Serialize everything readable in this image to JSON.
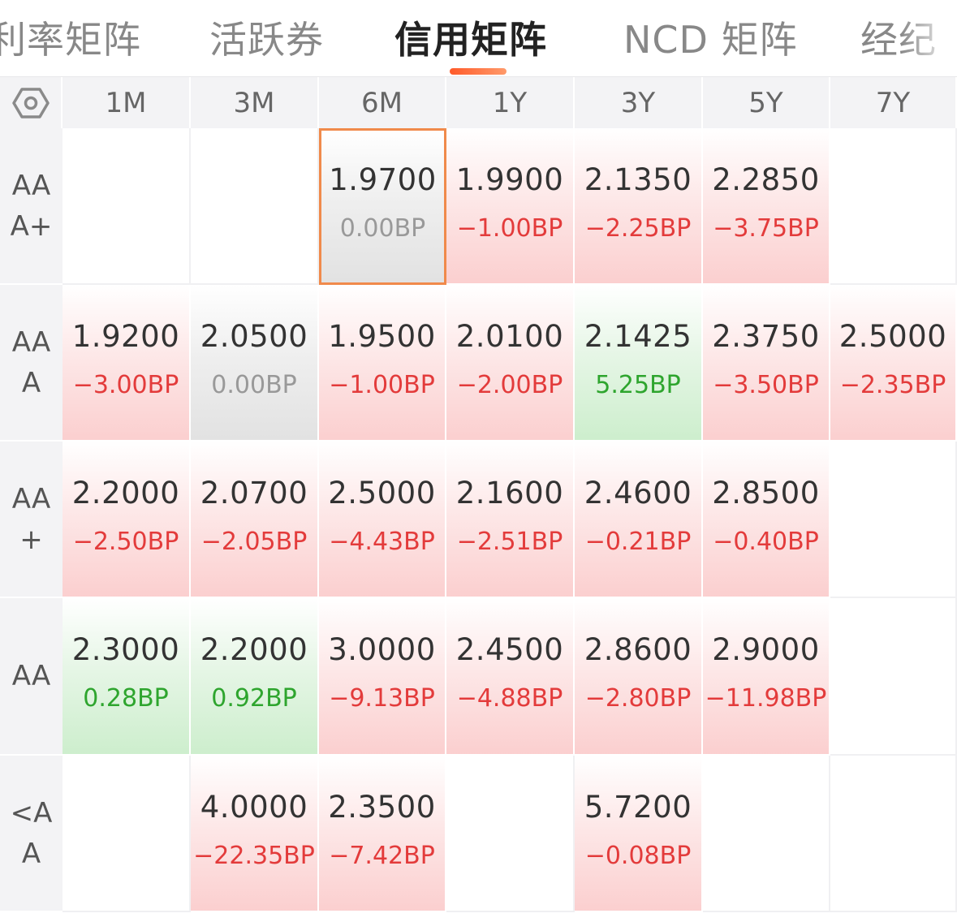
{
  "tabs": [
    {
      "label": "利率矩阵",
      "active": false
    },
    {
      "label": "活跃券",
      "active": false
    },
    {
      "label": "信用矩阵",
      "active": true
    },
    {
      "label": "NCD 矩阵",
      "active": false
    },
    {
      "label": "经纪",
      "active": false
    }
  ],
  "icons": {
    "settings": "hexagon-settings-icon"
  },
  "colors": {
    "accent": "#ff6a33",
    "negative": "#e33b3b",
    "positive": "#2ea52e",
    "neutral": "#999999",
    "selected_border": "#f08a4b"
  },
  "columns": [
    "1M",
    "3M",
    "6M",
    "1Y",
    "3Y",
    "5Y",
    "7Y"
  ],
  "rows": [
    {
      "label": "AA\nA+",
      "cells": [
        null,
        null,
        {
          "rate": "1.9700",
          "bp": "0.00BP",
          "trend": "zero",
          "selected": true
        },
        {
          "rate": "1.9900",
          "bp": "−1.00BP",
          "trend": "neg"
        },
        {
          "rate": "2.1350",
          "bp": "−2.25BP",
          "trend": "neg"
        },
        {
          "rate": "2.2850",
          "bp": "−3.75BP",
          "trend": "neg"
        },
        null
      ]
    },
    {
      "label": "AA\nA",
      "cells": [
        {
          "rate": "1.9200",
          "bp": "−3.00BP",
          "trend": "neg"
        },
        {
          "rate": "2.0500",
          "bp": "0.00BP",
          "trend": "zero"
        },
        {
          "rate": "1.9500",
          "bp": "−1.00BP",
          "trend": "neg"
        },
        {
          "rate": "2.0100",
          "bp": "−2.00BP",
          "trend": "neg"
        },
        {
          "rate": "2.1425",
          "bp": "5.25BP",
          "trend": "pos"
        },
        {
          "rate": "2.3750",
          "bp": "−3.50BP",
          "trend": "neg"
        },
        {
          "rate": "2.5000",
          "bp": "−2.35BP",
          "trend": "neg"
        }
      ]
    },
    {
      "label": "AA\n+",
      "cells": [
        {
          "rate": "2.2000",
          "bp": "−2.50BP",
          "trend": "neg"
        },
        {
          "rate": "2.0700",
          "bp": "−2.05BP",
          "trend": "neg"
        },
        {
          "rate": "2.5000",
          "bp": "−4.43BP",
          "trend": "neg"
        },
        {
          "rate": "2.1600",
          "bp": "−2.51BP",
          "trend": "neg"
        },
        {
          "rate": "2.4600",
          "bp": "−0.21BP",
          "trend": "neg"
        },
        {
          "rate": "2.8500",
          "bp": "−0.40BP",
          "trend": "neg"
        },
        null
      ]
    },
    {
      "label": "AA",
      "cells": [
        {
          "rate": "2.3000",
          "bp": "0.28BP",
          "trend": "pos"
        },
        {
          "rate": "2.2000",
          "bp": "0.92BP",
          "trend": "pos"
        },
        {
          "rate": "3.0000",
          "bp": "−9.13BP",
          "trend": "neg"
        },
        {
          "rate": "2.4500",
          "bp": "−4.88BP",
          "trend": "neg"
        },
        {
          "rate": "2.8600",
          "bp": "−2.80BP",
          "trend": "neg"
        },
        {
          "rate": "2.9000",
          "bp": "−11.98BP",
          "trend": "neg"
        },
        null
      ]
    },
    {
      "label": "<A\nA",
      "cells": [
        null,
        {
          "rate": "4.0000",
          "bp": "−22.35BP",
          "trend": "neg"
        },
        {
          "rate": "2.3500",
          "bp": "−7.42BP",
          "trend": "neg"
        },
        null,
        {
          "rate": "5.7200",
          "bp": "−0.08BP",
          "trend": "neg"
        },
        null,
        null
      ]
    }
  ]
}
